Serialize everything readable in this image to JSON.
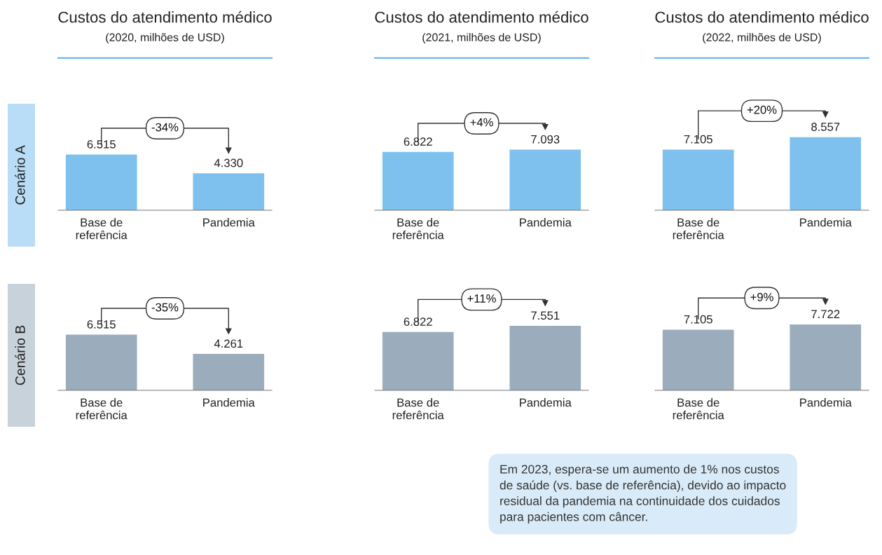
{
  "chart_data": [
    {
      "type": "bar",
      "title": "Custos do atendimento médico",
      "subtitle": "(2020, milhões de USD)",
      "ylabel": "Cenário A",
      "categories": [
        "Base de\nreferência",
        "Pandemia"
      ],
      "series": [
        {
          "color": "#7fc1ee",
          "values": [
            6515,
            4330
          ],
          "value_labels": [
            "6.515",
            "4.330"
          ]
        }
      ],
      "tick_labels": "x",
      "annotations": [
        "-34%"
      ]
    },
    {
      "type": "bar",
      "title": "Custos do atendimento médico",
      "subtitle": "(2021, milhões de USD)",
      "categories": [
        "Base de\nreferência",
        "Pandemia"
      ],
      "series": [
        {
          "color": "#7fc1ee",
          "values": [
            6822,
            7093
          ],
          "value_labels": [
            "6.822",
            "7.093"
          ]
        }
      ],
      "tick_labels": "x",
      "annotations": [
        "+4%"
      ]
    },
    {
      "type": "bar",
      "title": "Custos do atendimento médico",
      "subtitle": "(2022, milhões de USD)",
      "categories": [
        "Base de\nreferência",
        "Pandemia"
      ],
      "series": [
        {
          "color": "#7fc1ee",
          "values": [
            7105,
            8557
          ],
          "value_labels": [
            "7.105",
            "8.557"
          ]
        }
      ],
      "tick_labels": "x",
      "annotations": [
        "+20%"
      ]
    },
    {
      "type": "bar",
      "ylabel": "Cenário B",
      "categories": [
        "Base de\nreferência",
        "Pandemia"
      ],
      "series": [
        {
          "color": "#9badbd",
          "values": [
            6515,
            4261
          ],
          "value_labels": [
            "6.515",
            "4.261"
          ]
        }
      ],
      "tick_labels": "x",
      "annotations": [
        "-35%"
      ]
    },
    {
      "type": "bar",
      "categories": [
        "Base de\nreferência",
        "Pandemia"
      ],
      "series": [
        {
          "color": "#9badbd",
          "values": [
            6822,
            7551
          ],
          "value_labels": [
            "6.822",
            "7.551"
          ]
        }
      ],
      "tick_labels": "x",
      "annotations": [
        "+11%"
      ]
    },
    {
      "type": "bar",
      "categories": [
        "Base de\nreferência",
        "Pandemia"
      ],
      "series": [
        {
          "color": "#9badbd",
          "values": [
            7105,
            7722
          ],
          "value_labels": [
            "7.105",
            "7.722"
          ]
        }
      ],
      "tick_labels": "x",
      "annotations": [
        "+9%",
        "Em 2023, espera-se um aumento de 1% nos custos\nde saúde (vs. base de referência), devido ao impacto\nresidual da pandemia na continuidade dos cuidados\npara pacientes com câncer."
      ]
    }
  ]
}
